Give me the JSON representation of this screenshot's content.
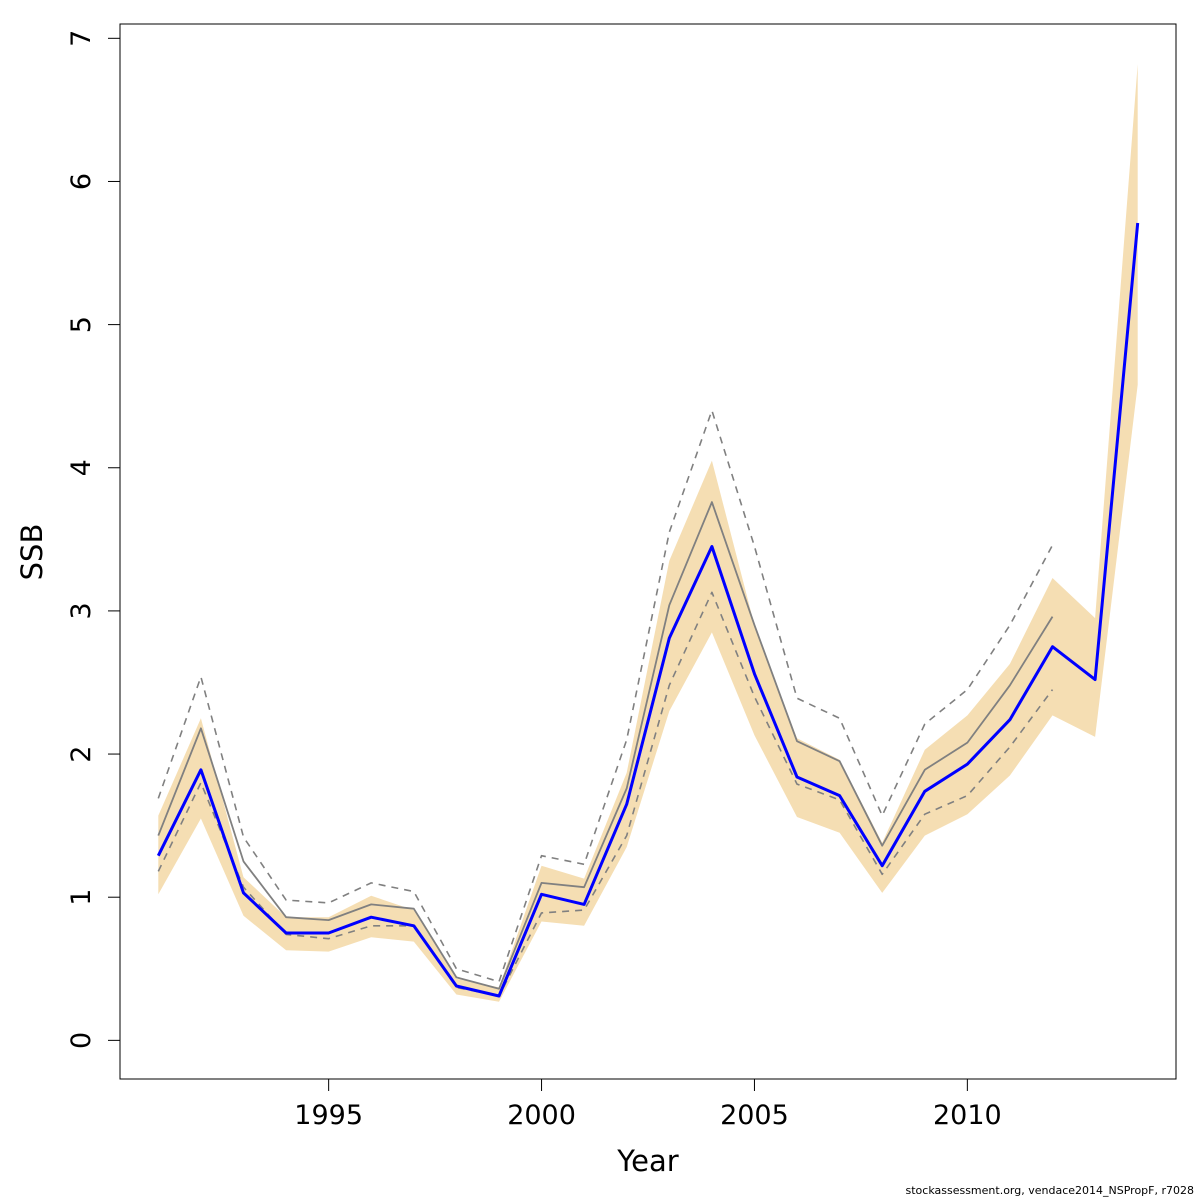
{
  "chart_data": {
    "type": "line",
    "xlabel": "Year",
    "ylabel": "SSB",
    "xlim": [
      1990.1,
      2014.9
    ],
    "ylim": [
      -0.27,
      7.1
    ],
    "x_ticks": [
      1995,
      2000,
      2005,
      2010
    ],
    "y_ticks": [
      0,
      1,
      2,
      3,
      4,
      5,
      6,
      7
    ],
    "grid": false,
    "legend": "none",
    "colors": {
      "band": "#f5deb3",
      "estimate": "#0000ff",
      "previous": "#808080",
      "previous_ci": "#808080"
    },
    "band": {
      "name": "",
      "x": [
        1991,
        1992,
        1993,
        1994,
        1995,
        1996,
        1997,
        1998,
        1999,
        2000,
        2001,
        2002,
        2003,
        2004,
        2005,
        2006,
        2007,
        2008,
        2009,
        2010,
        2011,
        2012,
        2013,
        2014
      ],
      "lower": [
        1.02,
        1.55,
        0.87,
        0.63,
        0.62,
        0.72,
        0.69,
        0.32,
        0.27,
        0.83,
        0.8,
        1.35,
        2.3,
        2.85,
        2.13,
        1.56,
        1.45,
        1.03,
        1.43,
        1.58,
        1.85,
        2.27,
        2.12,
        4.58
      ],
      "upper": [
        1.57,
        2.25,
        1.14,
        0.86,
        0.86,
        1.01,
        0.91,
        0.43,
        0.37,
        1.22,
        1.13,
        1.87,
        3.35,
        4.05,
        2.9,
        2.11,
        1.96,
        1.38,
        2.03,
        2.27,
        2.63,
        3.23,
        2.95,
        6.82
      ]
    },
    "series": [
      {
        "name": "",
        "style": "solid-thick",
        "x": [
          1991,
          1992,
          1993,
          1994,
          1995,
          1996,
          1997,
          1998,
          1999,
          2000,
          2001,
          2002,
          2003,
          2004,
          2005,
          2006,
          2007,
          2008,
          2009,
          2010,
          2011,
          2012,
          2013,
          2014
        ],
        "values": [
          1.29,
          1.89,
          1.03,
          0.75,
          0.75,
          0.86,
          0.8,
          0.38,
          0.31,
          1.02,
          0.95,
          1.65,
          2.81,
          3.45,
          2.56,
          1.84,
          1.71,
          1.22,
          1.74,
          1.93,
          2.24,
          2.75,
          2.52,
          5.71
        ]
      },
      {
        "name": "",
        "style": "solid-thin",
        "x": [
          1991,
          1992,
          1993,
          1994,
          1995,
          1996,
          1997,
          1998,
          1999,
          2000,
          2001,
          2002,
          2003,
          2004,
          2005,
          2006,
          2007,
          2008,
          2009,
          2010,
          2011,
          2012
        ],
        "values": [
          1.43,
          2.18,
          1.25,
          0.86,
          0.84,
          0.95,
          0.92,
          0.44,
          0.36,
          1.1,
          1.07,
          1.76,
          3.04,
          3.76,
          2.9,
          2.09,
          1.95,
          1.36,
          1.89,
          2.08,
          2.48,
          2.96
        ]
      },
      {
        "name": "",
        "style": "dashed-upper",
        "x": [
          1991,
          1992,
          1993,
          1994,
          1995,
          1996,
          1997,
          1998,
          1999,
          2000,
          2001,
          2002,
          2003,
          2004,
          2005,
          2006,
          2007,
          2008,
          2009,
          2010,
          2011,
          2012
        ],
        "values": [
          1.69,
          2.54,
          1.42,
          0.98,
          0.96,
          1.1,
          1.04,
          0.5,
          0.41,
          1.29,
          1.23,
          2.1,
          3.55,
          4.4,
          3.45,
          2.39,
          2.25,
          1.57,
          2.21,
          2.45,
          2.9,
          3.46
        ]
      },
      {
        "name": "",
        "style": "dashed-lower",
        "x": [
          1991,
          1992,
          1993,
          1994,
          1995,
          1996,
          1997,
          1998,
          1999,
          2000,
          2001,
          2002,
          2003,
          2004,
          2005,
          2006,
          2007,
          2008,
          2009,
          2010,
          2011,
          2012
        ],
        "values": [
          1.18,
          1.8,
          1.07,
          0.74,
          0.71,
          0.8,
          0.8,
          0.37,
          0.31,
          0.89,
          0.91,
          1.43,
          2.48,
          3.13,
          2.4,
          1.79,
          1.68,
          1.16,
          1.58,
          1.71,
          2.05,
          2.45
        ]
      }
    ]
  },
  "footer": "stockassessment.org, vendace2014_NSPropF, r7028"
}
